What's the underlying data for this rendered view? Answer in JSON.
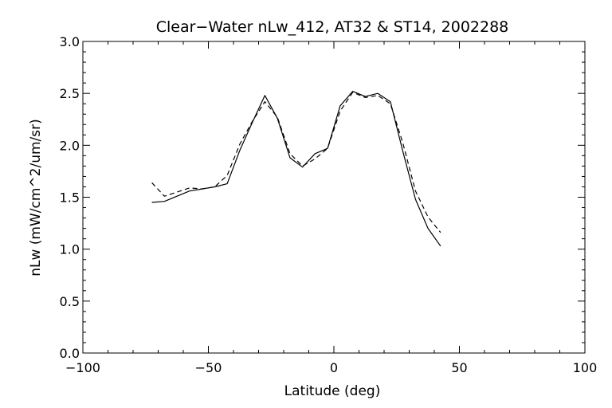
{
  "chart_data": {
    "type": "line",
    "title": "Clear−Water nLw_412, AT32 & ST14, 2002288",
    "xlabel": "Latitude (deg)",
    "ylabel": "nLw (mW/cm^2/um/sr)",
    "xlim": [
      -100,
      100
    ],
    "ylim": [
      0.0,
      3.0
    ],
    "xticks": [
      -100,
      -50,
      0,
      50,
      100
    ],
    "xtick_labels": [
      "−100",
      "−50",
      "0",
      "50",
      "100"
    ],
    "yticks": [
      0.0,
      0.5,
      1.0,
      1.5,
      2.0,
      2.5,
      3.0
    ],
    "ytick_labels": [
      "0.0",
      "0.5",
      "1.0",
      "1.5",
      "2.0",
      "2.5",
      "3.0"
    ],
    "grid": false,
    "legend": "none",
    "series": [
      {
        "style": "solid",
        "color": "#000000",
        "x": [
          -72.5,
          -67.5,
          -62.5,
          -57.5,
          -52.5,
          -47.5,
          -42.5,
          -37.5,
          -32.5,
          -27.5,
          -22.5,
          -17.5,
          -12.5,
          -7.5,
          -2.5,
          2.5,
          7.5,
          12.5,
          17.5,
          22.5,
          27.5,
          32.5,
          37.5,
          42.5
        ],
        "y": [
          1.45,
          1.46,
          1.51,
          1.56,
          1.58,
          1.6,
          1.63,
          1.95,
          2.22,
          2.48,
          2.26,
          1.88,
          1.79,
          1.92,
          1.97,
          2.38,
          2.52,
          2.47,
          2.5,
          2.42,
          1.94,
          1.48,
          1.2,
          1.03
        ]
      },
      {
        "style": "dashed",
        "color": "#000000",
        "x": [
          -72.5,
          -67.5,
          -62.5,
          -57.5,
          -52.5,
          -47.5,
          -42.5,
          -37.5,
          -32.5,
          -27.5,
          -22.5,
          -17.5,
          -12.5,
          -7.5,
          -2.5,
          2.5,
          7.5,
          12.5,
          17.5,
          22.5,
          27.5,
          32.5,
          37.5,
          42.5
        ],
        "y": [
          1.64,
          1.51,
          1.55,
          1.59,
          1.58,
          1.6,
          1.71,
          2.01,
          2.23,
          2.42,
          2.27,
          1.92,
          1.8,
          1.87,
          1.97,
          2.33,
          2.51,
          2.46,
          2.48,
          2.4,
          2.02,
          1.56,
          1.31,
          1.16
        ]
      }
    ]
  }
}
